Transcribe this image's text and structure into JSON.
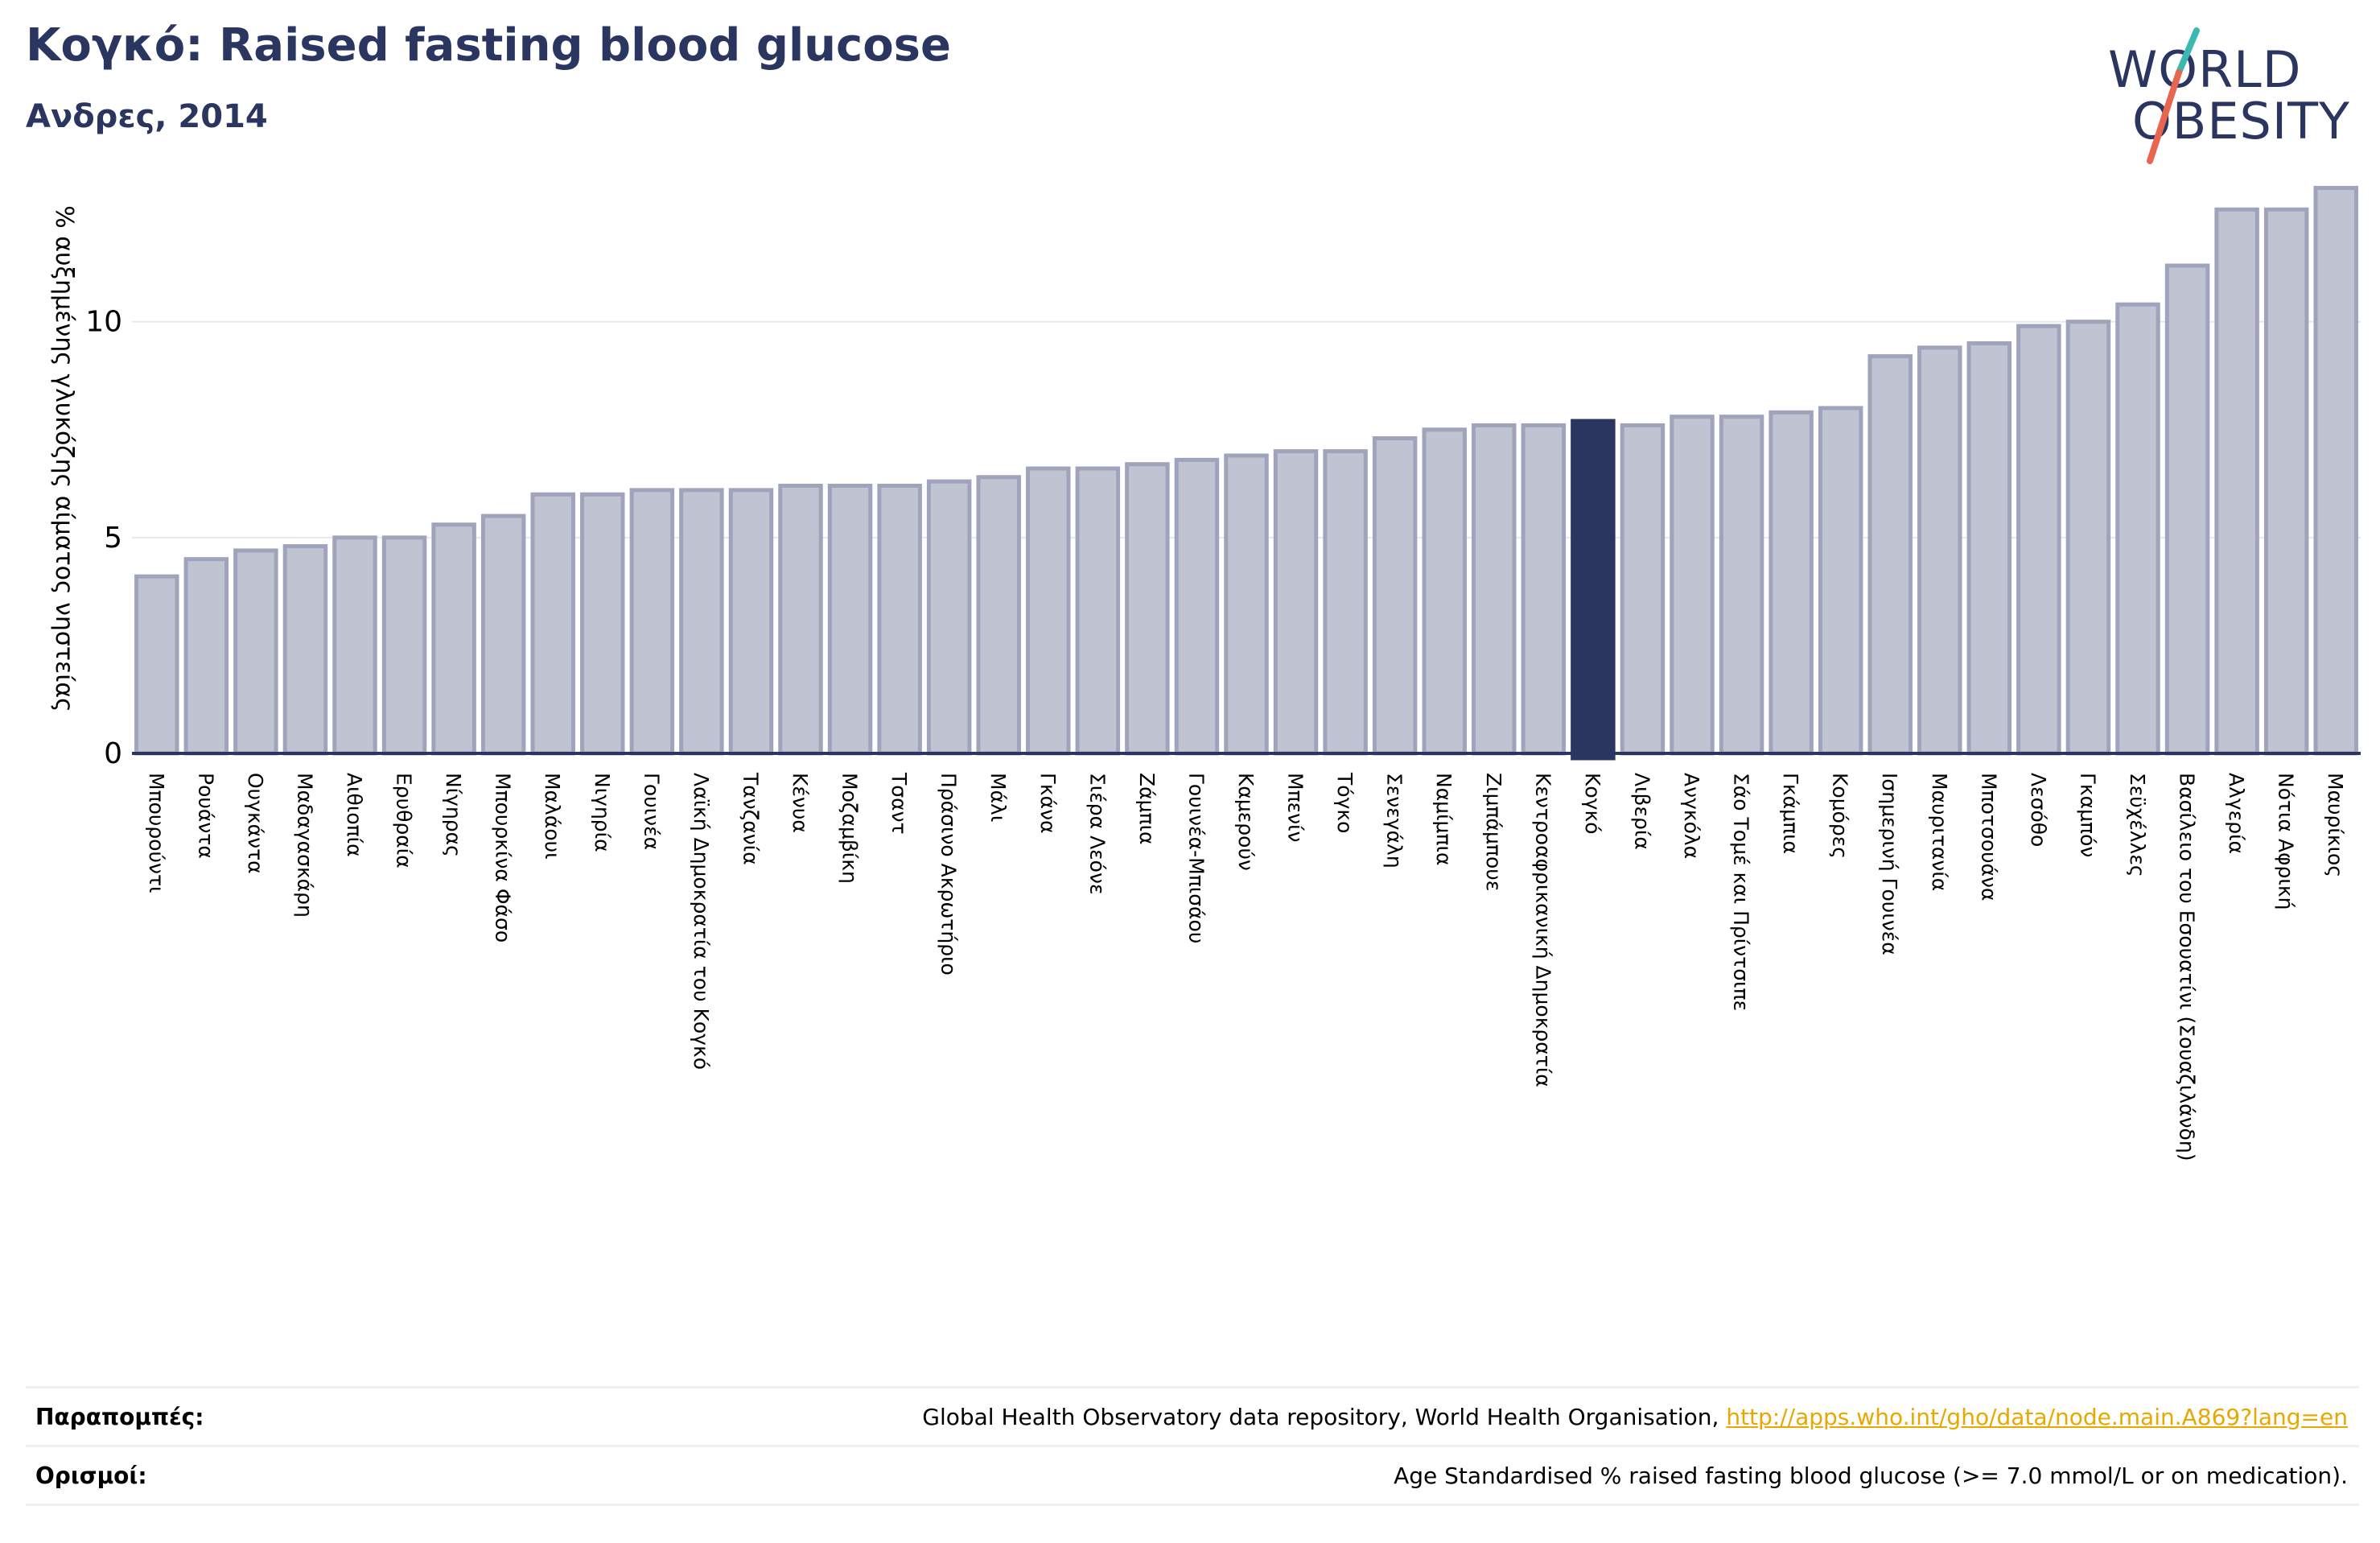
{
  "header": {
    "title": "Κογκό: Raised fasting blood glucose",
    "subtitle": "Ανδρες, 2014"
  },
  "logo": {
    "line1": "WORLD",
    "line2": "OBESITY",
    "colors": {
      "text": "#2a3560",
      "slash_teal": "#3bb8b0",
      "slash_coral": "#e8664f"
    }
  },
  "references": {
    "sources_label": "Παραπομπές:",
    "sources_text": "Global Health Observatory data repository, World Health Organisation, ",
    "sources_link": "http://apps.who.int/gho/data/node.main.A869?lang=en",
    "definitions_label": "Ορισμοί:",
    "definitions_text": "Age Standardised % raised fasting blood glucose (>= 7.0 mmol/L or on medication)."
  },
  "colors": {
    "bar_fill": "#c0c3d1",
    "bar_stroke": "#9fa3bb",
    "highlight": "#2a3560",
    "grid": "#e6e8ee",
    "axis": "#2a3560"
  },
  "chart_data": {
    "type": "bar",
    "ylabel": "% αυξημένης γλυκόζης αίματος νηστείας",
    "ylim": [
      0,
      13.5
    ],
    "yticks": [
      0,
      5,
      10
    ],
    "grid": true,
    "highlight": "Κογκό",
    "categories": [
      "Μπουρούντι",
      "Ρουάντα",
      "Ουγκάντα",
      "Μαδαγασκάρη",
      "Αιθιοπία",
      "Ερυθραία",
      "Νίγηρας",
      "Μπουρκίνα Φάσο",
      "Μαλάουι",
      "Νιγηρία",
      "Γουινέα",
      "Λαϊκή Δημοκρατία του Κογκό",
      "Τανζανία",
      "Κένυα",
      "Μοζαμβίκη",
      "Τσαντ",
      "Πράσινο Ακρωτήριο",
      "Μάλι",
      "Γκάνα",
      "Σιέρα Λεόνε",
      "Ζάμπια",
      "Γουινέα-Μπισάου",
      "Καμερούν",
      "Μπενίν",
      "Τόγκο",
      "Σενεγάλη",
      "Ναμίμπια",
      "Ζιμπάμπουε",
      "Κεντροαφρικανική Δημοκρατία",
      "Κογκό",
      "Λιβερία",
      "Ανγκόλα",
      "Σάο Τομέ και Πρίντσιπε",
      "Γκάμπια",
      "Κομόρες",
      "Ισημερινή Γουινέα",
      "Μαυριτανία",
      "Μποτσουάνα",
      "Λεσόθο",
      "Γκαμπόν",
      "Σεϋχέλλες",
      "Βασίλειο του Εσουατίνι (Σουαζιλάνδη)",
      "Αλγερία",
      "Νότια Αφρική",
      "Μαυρίκιος"
    ],
    "values": [
      4.1,
      4.5,
      4.7,
      4.8,
      5.0,
      5.0,
      5.3,
      5.5,
      6.0,
      6.0,
      6.1,
      6.1,
      6.1,
      6.2,
      6.2,
      6.2,
      6.3,
      6.4,
      6.6,
      6.6,
      6.7,
      6.8,
      6.9,
      7.0,
      7.0,
      7.3,
      7.5,
      7.6,
      7.6,
      7.7,
      7.6,
      7.8,
      7.8,
      7.9,
      8.0,
      9.2,
      9.4,
      9.5,
      9.9,
      10.0,
      10.4,
      11.3,
      12.6,
      12.6,
      13.1
    ]
  }
}
